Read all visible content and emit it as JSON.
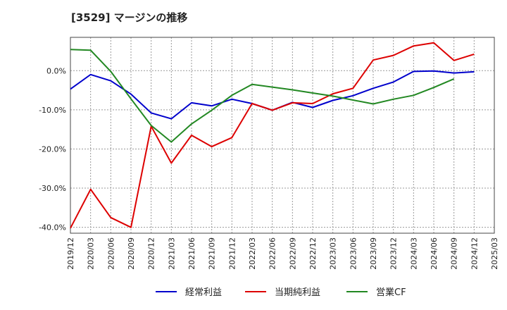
{
  "chart_data": {
    "type": "line",
    "title": "[3529]  マージンの推移",
    "x": [
      "2019/12",
      "2020/03",
      "2020/06",
      "2020/09",
      "2020/12",
      "2021/03",
      "2021/06",
      "2021/09",
      "2021/12",
      "2022/03",
      "2022/06",
      "2022/09",
      "2022/12",
      "2023/03",
      "2023/06",
      "2023/09",
      "2023/12",
      "2024/03",
      "2024/06",
      "2024/09",
      "2024/12",
      "2025/03"
    ],
    "yticks": [
      0,
      -10,
      -20,
      -30,
      -40
    ],
    "ytick_labels": [
      "0.0%",
      "-10.0%",
      "-20.0%",
      "-30.0%",
      "-40.0%"
    ],
    "ylim": [
      -41.5,
      8.5
    ],
    "grid": true,
    "legend_position": "bottom",
    "series": [
      {
        "name": "経常利益",
        "color": "#0000cc",
        "values": [
          -4.7,
          -1.0,
          -2.6,
          -6.0,
          -10.8,
          -12.3,
          -8.2,
          -9.0,
          -7.3,
          -8.4,
          -10.1,
          -8.1,
          -9.4,
          -7.6,
          -6.4,
          -4.5,
          -2.9,
          -0.2,
          -0.1,
          -0.6,
          -0.3,
          null
        ]
      },
      {
        "name": "当期純利益",
        "color": "#dd0000",
        "values": [
          -40.2,
          -30.3,
          -37.5,
          -40.0,
          -14.2,
          -23.6,
          -16.5,
          -19.4,
          -17.1,
          -8.4,
          -10.1,
          -8.2,
          -8.4,
          -5.9,
          -4.5,
          2.7,
          3.9,
          6.3,
          7.1,
          2.6,
          4.2,
          null
        ]
      },
      {
        "name": "営業CF",
        "color": "#228822",
        "values": [
          5.4,
          5.2,
          -0.2,
          -7.2,
          -14.0,
          -18.2,
          -13.6,
          -10.1,
          -6.3,
          -3.5,
          -4.2,
          -4.9,
          -5.7,
          -6.5,
          -7.5,
          -8.5,
          -7.3,
          -6.3,
          -4.3,
          -2.1,
          null,
          null
        ]
      }
    ]
  }
}
